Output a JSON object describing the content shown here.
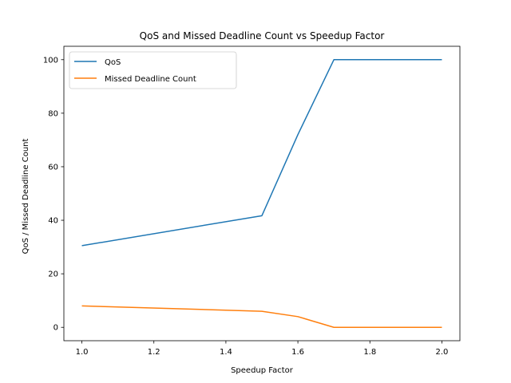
{
  "chart_data": {
    "type": "line",
    "title": "QoS and Missed Deadline Count vs Speedup Factor",
    "xlabel": "Speedup Factor",
    "ylabel": "QoS / Missed Deadline Count",
    "xlim": [
      0.95,
      2.05
    ],
    "ylim": [
      -5,
      105
    ],
    "xticks": [
      1.0,
      1.2,
      1.4,
      1.6,
      1.8,
      2.0
    ],
    "xtick_labels": [
      "1.0",
      "1.2",
      "1.4",
      "1.6",
      "1.8",
      "2.0"
    ],
    "yticks": [
      0,
      20,
      40,
      60,
      80,
      100
    ],
    "ytick_labels": [
      "0",
      "20",
      "40",
      "60",
      "80",
      "100"
    ],
    "grid": false,
    "legend_position": "top-left",
    "series": [
      {
        "name": "QoS",
        "color": "#1f77b4",
        "x": [
          1.0,
          1.5,
          1.6,
          1.7,
          1.8,
          1.9,
          2.0
        ],
        "y": [
          30.5,
          41.7,
          72,
          100,
          100,
          100,
          100
        ]
      },
      {
        "name": "Missed Deadline Count",
        "color": "#ff7f0e",
        "x": [
          1.0,
          1.5,
          1.6,
          1.7,
          1.8,
          1.9,
          2.0
        ],
        "y": [
          8,
          6,
          4,
          0,
          0,
          0,
          0
        ]
      }
    ]
  }
}
